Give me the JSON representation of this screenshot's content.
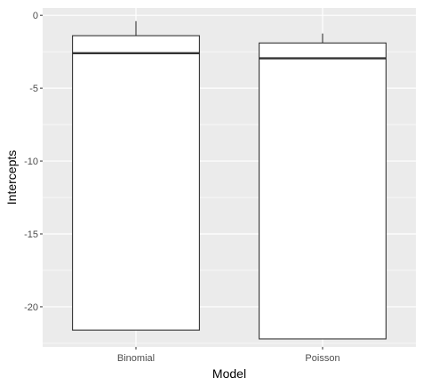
{
  "chart_data": {
    "type": "boxplot",
    "title": "",
    "xlabel": "Model",
    "ylabel": "Intercepts",
    "categories": [
      "Binomial",
      "Poisson"
    ],
    "boxes": [
      {
        "category": "Binomial",
        "min": -21.6,
        "q1": -21.6,
        "median": -2.6,
        "q3": -1.4,
        "max": -0.4
      },
      {
        "category": "Poisson",
        "min": -22.2,
        "q1": -22.2,
        "median": -2.95,
        "q3": -1.9,
        "max": -1.25
      }
    ],
    "ylim": [
      -22.75,
      0.5
    ],
    "yticks": [
      0,
      -5,
      -10,
      -15,
      -20
    ],
    "ytick_labels": [
      "0",
      "-5",
      "-10",
      "-15",
      "-20"
    ],
    "grid": true,
    "colors": {
      "panel_background": "#ebebeb",
      "grid_major": "#ffffff",
      "box_fill": "#ffffff",
      "box_stroke": "#333333"
    }
  }
}
